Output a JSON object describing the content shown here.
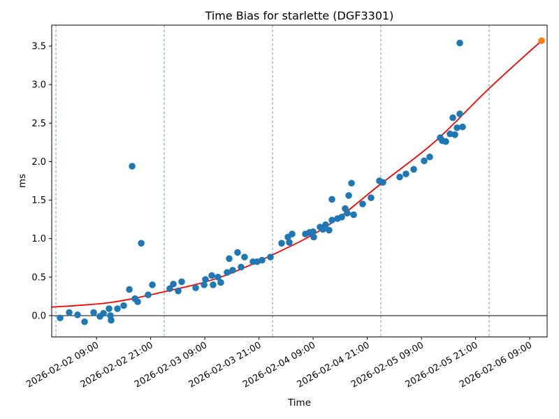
{
  "figure": {
    "background": "#ffffff"
  },
  "chart_data": {
    "type": "scatter",
    "title": "Time Bias for starlette (DGF3301)",
    "xlabel": "Time",
    "ylabel": "ms",
    "x_tick_labels": [
      "2026-02-02 09:00",
      "2026-02-02 21:00",
      "2026-02-03 09:00",
      "2026-02-03 21:00",
      "2026-02-04 09:00",
      "2026-02-04 21:00",
      "2026-02-05 09:00",
      "2026-02-05 21:00",
      "2026-02-06 09:00"
    ],
    "y_tick_labels": [
      "0.0",
      "0.5",
      "1.0",
      "1.5",
      "2.0",
      "2.5",
      "3.0",
      "3.5"
    ],
    "xlim": [
      "2026-02-01 23:04",
      "2026-02-06 12:51"
    ],
    "ylim": [
      -0.277,
      3.772
    ],
    "grid": {
      "day_gridlines": [
        "2026-02-02 00:00",
        "2026-02-03 00:00",
        "2026-02-04 00:00",
        "2026-02-05 00:00",
        "2026-02-06 00:00"
      ],
      "color": "#5f9ec9",
      "style": "dashed"
    },
    "zero_line": {
      "value": 0.0,
      "color": "#000000"
    },
    "series": [
      {
        "name": "time-bias-observations",
        "color": "#1f77b4",
        "marker_radius": 4.8,
        "points": [
          [
            "2026-02-02 00:56",
            -0.03
          ],
          [
            "2026-02-02 02:57",
            0.04
          ],
          [
            "2026-02-02 04:48",
            0.01
          ],
          [
            "2026-02-02 06:21",
            -0.08
          ],
          [
            "2026-02-02 08:22",
            0.04
          ],
          [
            "2026-02-02 09:45",
            -0.01
          ],
          [
            "2026-02-02 10:32",
            0.03
          ],
          [
            "2026-02-02 11:46",
            0.09
          ],
          [
            "2026-02-02 12:05",
            0.0
          ],
          [
            "2026-02-02 12:14",
            -0.06
          ],
          [
            "2026-02-02 13:38",
            0.09
          ],
          [
            "2026-02-02 15:01",
            0.13
          ],
          [
            "2026-02-02 16:16",
            0.34
          ],
          [
            "2026-02-02 16:53",
            1.94
          ],
          [
            "2026-02-02 17:30",
            0.22
          ],
          [
            "2026-02-02 18:07",
            0.18
          ],
          [
            "2026-02-02 18:54",
            0.94
          ],
          [
            "2026-02-02 20:26",
            0.27
          ],
          [
            "2026-02-02 21:22",
            0.4
          ],
          [
            "2026-02-03 01:14",
            0.35
          ],
          [
            "2026-02-03 02:01",
            0.41
          ],
          [
            "2026-02-03 03:06",
            0.32
          ],
          [
            "2026-02-03 03:52",
            0.44
          ],
          [
            "2026-02-03 06:58",
            0.36
          ],
          [
            "2026-02-03 08:50",
            0.4
          ],
          [
            "2026-02-03 09:08",
            0.47
          ],
          [
            "2026-02-03 10:32",
            0.52
          ],
          [
            "2026-02-03 10:50",
            0.4
          ],
          [
            "2026-02-03 11:55",
            0.5
          ],
          [
            "2026-02-03 12:32",
            0.43
          ],
          [
            "2026-02-03 13:56",
            0.56
          ],
          [
            "2026-02-03 14:24",
            0.74
          ],
          [
            "2026-02-03 15:10",
            0.59
          ],
          [
            "2026-02-03 16:15",
            0.82
          ],
          [
            "2026-02-03 17:02",
            0.63
          ],
          [
            "2026-02-03 17:48",
            0.76
          ],
          [
            "2026-02-03 19:40",
            0.7
          ],
          [
            "2026-02-03 20:36",
            0.7
          ],
          [
            "2026-02-03 21:41",
            0.72
          ],
          [
            "2026-02-03 23:32",
            0.76
          ],
          [
            "2026-02-04 02:01",
            0.94
          ],
          [
            "2026-02-04 03:24",
            1.02
          ],
          [
            "2026-02-04 03:43",
            0.95
          ],
          [
            "2026-02-04 04:20",
            1.06
          ],
          [
            "2026-02-04 07:17",
            1.06
          ],
          [
            "2026-02-04 08:12",
            1.08
          ],
          [
            "2026-02-04 08:59",
            1.09
          ],
          [
            "2026-02-04 09:08",
            1.02
          ],
          [
            "2026-02-04 10:32",
            1.15
          ],
          [
            "2026-02-04 11:09",
            1.12
          ],
          [
            "2026-02-04 11:46",
            1.18
          ],
          [
            "2026-02-04 12:32",
            1.11
          ],
          [
            "2026-02-04 13:10",
            1.24
          ],
          [
            "2026-02-04 13:10",
            1.51
          ],
          [
            "2026-02-04 14:24",
            1.26
          ],
          [
            "2026-02-04 15:20",
            1.28
          ],
          [
            "2026-02-04 16:06",
            1.39
          ],
          [
            "2026-02-04 16:34",
            1.33
          ],
          [
            "2026-02-04 16:53",
            1.56
          ],
          [
            "2026-02-04 17:30",
            1.72
          ],
          [
            "2026-02-04 17:58",
            1.31
          ],
          [
            "2026-02-04 19:58",
            1.45
          ],
          [
            "2026-02-04 21:50",
            1.53
          ],
          [
            "2026-02-04 23:41",
            1.75
          ],
          [
            "2026-02-05 00:28",
            1.73
          ],
          [
            "2026-02-05 04:11",
            1.8
          ],
          [
            "2026-02-05 05:34",
            1.84
          ],
          [
            "2026-02-05 07:17",
            1.9
          ],
          [
            "2026-02-05 09:36",
            2.01
          ],
          [
            "2026-02-05 10:50",
            2.06
          ],
          [
            "2026-02-05 13:10",
            2.31
          ],
          [
            "2026-02-05 13:38",
            2.27
          ],
          [
            "2026-02-05 14:24",
            2.26
          ],
          [
            "2026-02-05 15:20",
            2.36
          ],
          [
            "2026-02-05 15:57",
            2.57
          ],
          [
            "2026-02-05 16:25",
            2.35
          ],
          [
            "2026-02-05 16:53",
            2.44
          ],
          [
            "2026-02-05 17:30",
            3.54
          ],
          [
            "2026-02-05 17:30",
            2.62
          ],
          [
            "2026-02-05 18:07",
            2.45
          ]
        ]
      },
      {
        "name": "predicted-point",
        "color": "#ff7f0e",
        "marker_radius": 4.8,
        "points": [
          [
            "2026-02-06 11:37",
            3.57
          ]
        ]
      }
    ],
    "fit_curve": {
      "name": "bias-fit-curve",
      "color": "#ff0000",
      "width": 1.8,
      "points": [
        [
          "2026-02-01 23:04",
          0.11
        ],
        [
          "2026-02-02 12:00",
          0.17
        ],
        [
          "2026-02-03 00:00",
          0.31
        ],
        [
          "2026-02-03 12:00",
          0.49
        ],
        [
          "2026-02-04 00:00",
          0.79
        ],
        [
          "2026-02-04 12:00",
          1.16
        ],
        [
          "2026-02-05 00:00",
          1.71
        ],
        [
          "2026-02-05 12:00",
          2.26
        ],
        [
          "2026-02-06 00:00",
          2.95
        ],
        [
          "2026-02-06 11:37",
          3.57
        ]
      ]
    }
  }
}
